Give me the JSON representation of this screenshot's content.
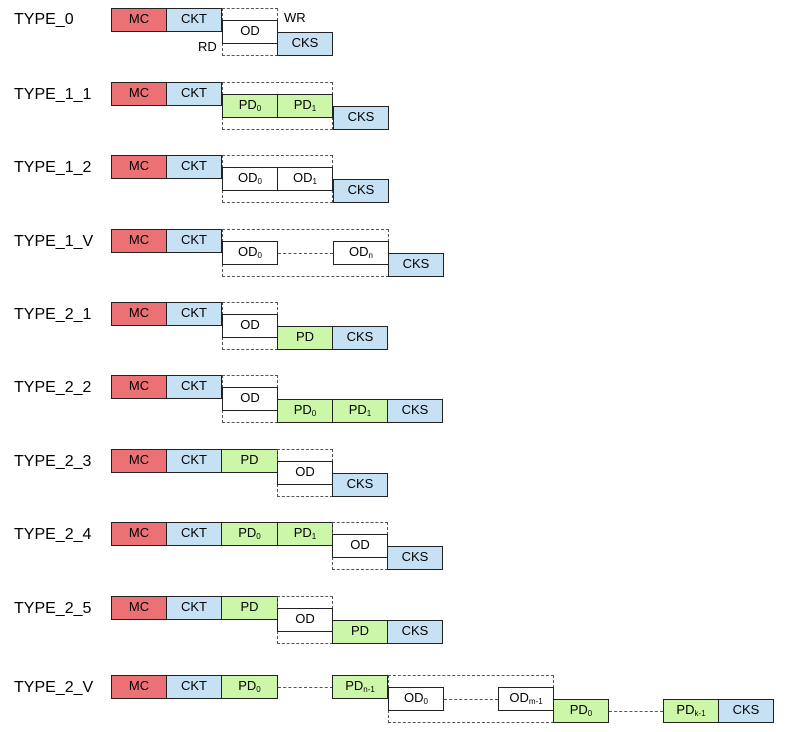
{
  "rows": [
    {
      "label": "TYPE_0"
    },
    {
      "label": "TYPE_1_1"
    },
    {
      "label": "TYPE_1_2"
    },
    {
      "label": "TYPE_1_V"
    },
    {
      "label": "TYPE_2_1"
    },
    {
      "label": "TYPE_2_2"
    },
    {
      "label": "TYPE_2_3"
    },
    {
      "label": "TYPE_2_4"
    },
    {
      "label": "TYPE_2_5"
    },
    {
      "label": "TYPE_2_V"
    }
  ],
  "block_text": {
    "mc": "MC",
    "ckt": "CKT",
    "cks": "CKS",
    "pd": "PD",
    "od": "OD"
  },
  "subscripts": {
    "zero": "0",
    "one": "1",
    "n": "n",
    "n_minus_1": "n-1",
    "m_minus_1": "m-1",
    "k_minus_1": "k-1"
  },
  "annotations": {
    "wr": "WR",
    "rd": "RD"
  },
  "colors": {
    "mc": "#ec7175",
    "ckt": "#c6e1f4",
    "cks": "#c6e1f4",
    "pd": "#cdf7a8",
    "od": "#ffffff"
  }
}
